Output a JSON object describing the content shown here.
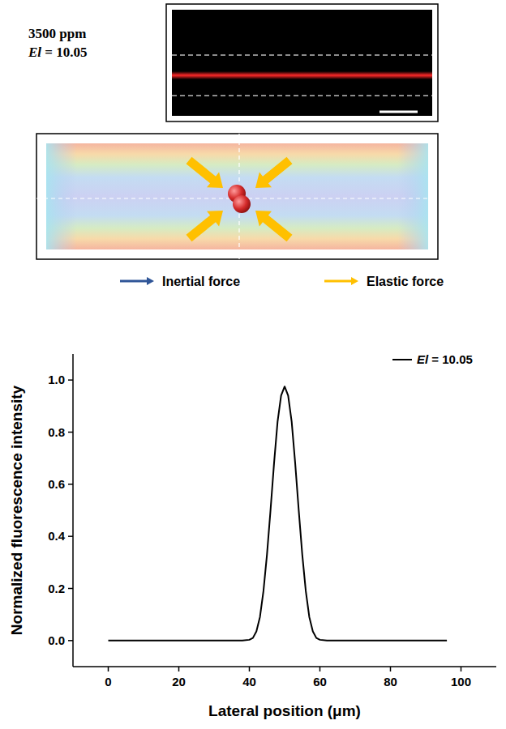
{
  "image_panel": {
    "concentration": "3500 ppm",
    "label": "El = 10.05"
  },
  "diagram": {
    "legend": [
      {
        "label": "Inertial force",
        "color": "#2f5597"
      },
      {
        "label": "Elastic force",
        "color": "#ffc000"
      }
    ]
  },
  "chart_data": {
    "type": "line",
    "x_label": "Lateral position (μm)",
    "y_label": "Normalized fluorescence intensity",
    "x": [
      0,
      10,
      20,
      30,
      38,
      40,
      41,
      42,
      43,
      44,
      45,
      46,
      47,
      48,
      49,
      50,
      51,
      52,
      53,
      54,
      55,
      56,
      57,
      58,
      59,
      60,
      62,
      70,
      80,
      90,
      96
    ],
    "series": [
      {
        "name": "El = 10.05",
        "color": "#000000",
        "values": [
          0,
          0,
          0,
          0,
          0,
          0.003,
          0.01,
          0.035,
          0.09,
          0.19,
          0.33,
          0.5,
          0.68,
          0.84,
          0.94,
          0.975,
          0.94,
          0.84,
          0.68,
          0.5,
          0.33,
          0.19,
          0.09,
          0.035,
          0.01,
          0.003,
          0,
          0,
          0,
          0,
          0
        ]
      }
    ],
    "xlim": [
      -10,
      110
    ],
    "xticks": [
      0,
      20,
      40,
      60,
      80,
      100
    ],
    "ylim": [
      -0.1,
      1.1
    ],
    "yticks": [
      {
        "value": 0,
        "label": "0.0"
      },
      {
        "value": 0.2,
        "label": "0.2"
      },
      {
        "value": 0.4,
        "label": "0.4"
      },
      {
        "value": 0.6,
        "label": "0.6"
      },
      {
        "value": 0.8,
        "label": "0.8"
      },
      {
        "value": 1.0,
        "label": "1.0"
      }
    ],
    "legend": "top-right",
    "grid": false
  }
}
